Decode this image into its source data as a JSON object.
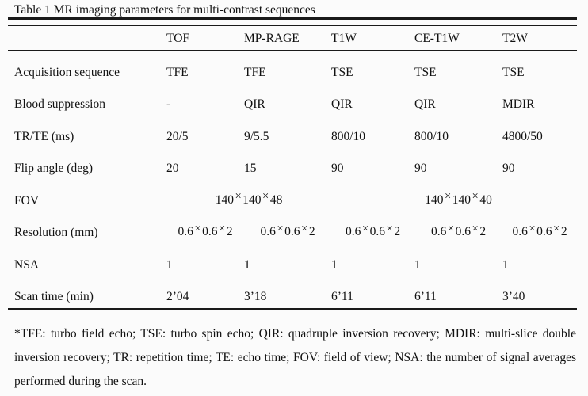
{
  "caption": "Table 1 MR imaging parameters for multi-contrast sequences",
  "table": {
    "columns": [
      "",
      "TOF",
      "MP-RAGE",
      "T1W",
      "CE-T1W",
      "T2W"
    ],
    "rows": [
      {
        "label": "Acquisition sequence",
        "values": [
          "TFE",
          "TFE",
          "TSE",
          "TSE",
          "TSE"
        ]
      },
      {
        "label": "Blood suppression",
        "values": [
          "-",
          "QIR",
          "QIR",
          "QIR",
          "MDIR"
        ]
      },
      {
        "label": "TR/TE (ms)",
        "values": [
          "20/5",
          "9/5.5",
          "800/10",
          "800/10",
          "4800/50"
        ]
      },
      {
        "label": "Flip angle (deg)",
        "values": [
          "20",
          "15",
          "90",
          "90",
          "90"
        ]
      },
      {
        "label": "FOV",
        "span_values": [
          "140×140×48",
          "140×140×40"
        ]
      },
      {
        "label": "Resolution (mm)",
        "values": [
          "0.6×0.6×2",
          "0.6×0.6×2",
          "0.6×0.6×2",
          "0.6×0.6×2",
          "0.6×0.6×2"
        ]
      },
      {
        "label": "NSA",
        "values": [
          "1",
          "1",
          "1",
          "1",
          "1"
        ]
      },
      {
        "label": "Scan time (min)",
        "values": [
          "2’04",
          "3’18",
          "6’11",
          "6’11",
          "3’40"
        ]
      }
    ]
  },
  "footnote": "*TFE: turbo field echo; TSE: turbo spin echo; QIR: quadruple inversion recovery; MDIR: multi-slice double inversion recovery; TR: repetition time; TE: echo time; FOV: field of view; NSA: the number of signal averages performed during the scan."
}
